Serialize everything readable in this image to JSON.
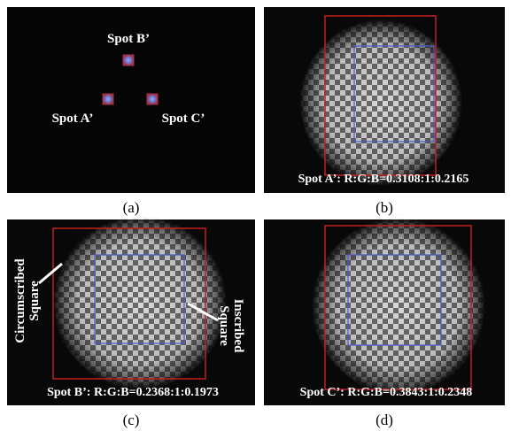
{
  "panels": [
    {
      "label": "(a)",
      "spots": [
        "Spot B’",
        "Spot A’",
        "Spot C’"
      ]
    },
    {
      "label": "(b)",
      "caption": "Spot A’: R:G:B=0.3108:1:0.2165"
    },
    {
      "label": "(c)",
      "caption": "Spot B’: R:G:B=0.2368:1:0.1973",
      "annotations": [
        [
          "Circumscribed",
          "Square"
        ],
        [
          "Inscribed",
          "Square"
        ]
      ]
    },
    {
      "label": "(d)",
      "caption": "Spot C’: R:G:B=0.3843:1:0.2348"
    }
  ]
}
